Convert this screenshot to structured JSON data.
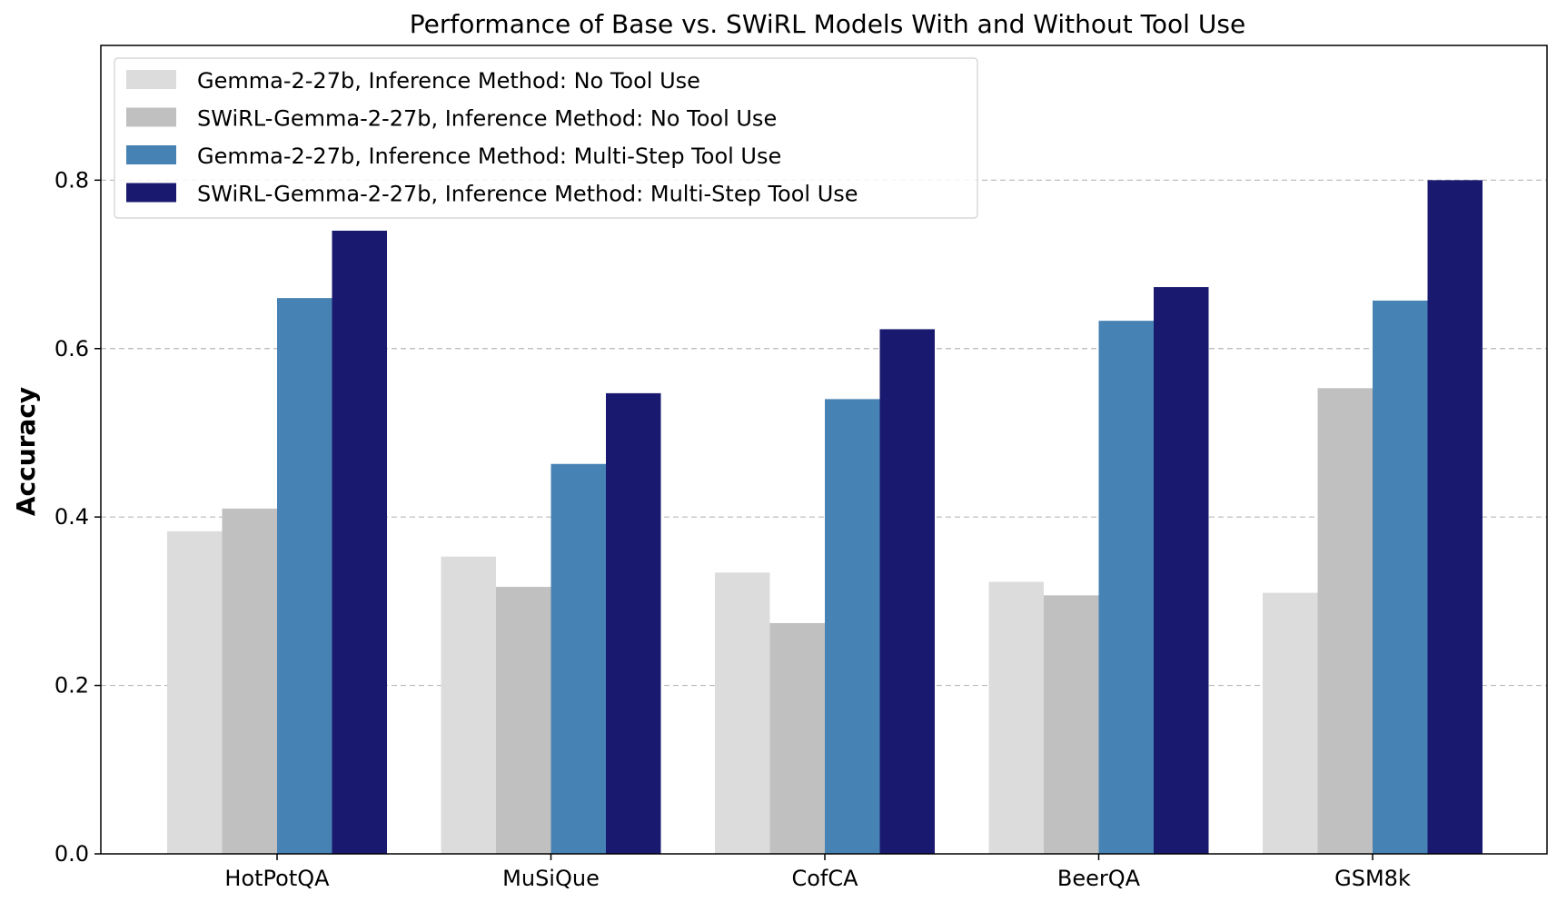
{
  "chart_data": {
    "type": "bar",
    "title": "Performance of Base vs. SWiRL Models With and Without Tool Use",
    "xlabel": "",
    "ylabel": "Accuracy",
    "ylim": [
      0,
      0.96
    ],
    "yticks": [
      0.0,
      0.2,
      0.4,
      0.6,
      0.8
    ],
    "ytick_labels": [
      "0.0",
      "0.2",
      "0.4",
      "0.6",
      "0.8"
    ],
    "grid": "y-dashed",
    "legend_position": "top-left",
    "categories": [
      "HotPotQA",
      "MuSiQue",
      "CofCA",
      "BeerQA",
      "GSM8k"
    ],
    "series": [
      {
        "name": "Gemma-2-27b, Inference Method: No Tool Use",
        "color": "#dcdcdc",
        "values": [
          0.383,
          0.353,
          0.334,
          0.323,
          0.31
        ]
      },
      {
        "name": "SWiRL-Gemma-2-27b, Inference Method: No Tool Use",
        "color": "#c0c0c0",
        "values": [
          0.41,
          0.317,
          0.274,
          0.307,
          0.553
        ]
      },
      {
        "name": "Gemma-2-27b, Inference Method: Multi-Step Tool Use",
        "color": "#4682b4",
        "values": [
          0.66,
          0.463,
          0.54,
          0.633,
          0.657
        ]
      },
      {
        "name": "SWiRL-Gemma-2-27b, Inference Method: Multi-Step Tool Use",
        "color": "#191970",
        "values": [
          0.74,
          0.547,
          0.623,
          0.673,
          0.8
        ]
      }
    ]
  }
}
